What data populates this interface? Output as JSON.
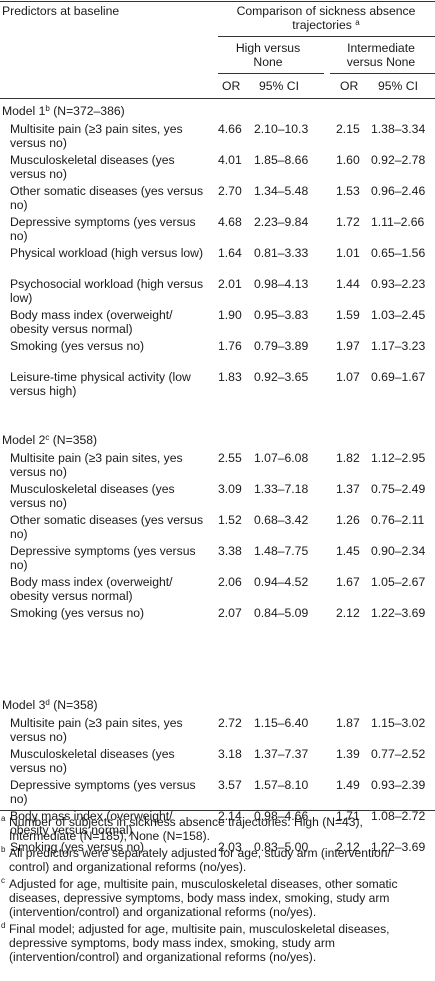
{
  "header": {
    "predictors": "Predictors at baseline",
    "comparison": "Comparison of sickness absence trajectories",
    "comparison_mark": "a",
    "group1": "High versus None",
    "group2": "Intermediate versus None",
    "or": "OR",
    "ci": "95% CI"
  },
  "models": [
    {
      "title": "Model 1",
      "mark": "b",
      "n": "(N=372–386)",
      "rows": [
        {
          "label": "Multisite pain (≥3 pain sites, yes versus no)",
          "or1": "4.66",
          "ci1": "2.10–10.3",
          "or2": "2.15",
          "ci2": "1.38–3.34"
        },
        {
          "label": "Musculoskeletal diseases (yes versus no)",
          "or1": "4.01",
          "ci1": "1.85–8.66",
          "or2": "1.60",
          "ci2": "0.92–2.78"
        },
        {
          "label": "Other somatic diseases (yes versus no)",
          "or1": "2.70",
          "ci1": "1.34–5.48",
          "or2": "1.53",
          "ci2": "0.96–2.46"
        },
        {
          "label": "Depressive symptoms (yes versus no)",
          "or1": "4.68",
          "ci1": "2.23–9.84",
          "or2": "1.72",
          "ci2": "1.11–2.66"
        },
        {
          "label": "Physical workload (high versus low)",
          "or1": "1.64",
          "ci1": "0.81–3.33",
          "or2": "1.01",
          "ci2": "0.65–1.56"
        },
        {
          "label": "Psychosocial workload (high versus low)",
          "or1": "2.01",
          "ci1": "0.98–4.13",
          "or2": "1.44",
          "ci2": "0.93–2.23"
        },
        {
          "label": "Body mass index (overweight/ obesity versus normal)",
          "or1": "1.90",
          "ci1": "0.95–3.83",
          "or2": "1.59",
          "ci2": "1.03–2.45"
        },
        {
          "label": "Smoking (yes versus no)",
          "or1": "1.76",
          "ci1": "0.79–3.89",
          "or2": "1.97",
          "ci2": "1.17–3.23"
        },
        {
          "label": "Leisure-time physical activity (low versus high)",
          "or1": "1.83",
          "ci1": "0.92–3.65",
          "or2": "1.07",
          "ci2": "0.69–1.67"
        }
      ]
    },
    {
      "title": "Model 2",
      "mark": "c",
      "n": "(N=358)",
      "rows": [
        {
          "label": "Multisite pain (≥3 pain sites, yes versus no)",
          "or1": "2.55",
          "ci1": "1.07–6.08",
          "or2": "1.82",
          "ci2": "1.12–2.95"
        },
        {
          "label": "Musculoskeletal diseases (yes versus no)",
          "or1": "3.09",
          "ci1": "1.33–7.18",
          "or2": "1.37",
          "ci2": "0.75–2.49"
        },
        {
          "label": "Other somatic diseases (yes versus no)",
          "or1": "1.52",
          "ci1": "0.68–3.42",
          "or2": "1.26",
          "ci2": "0.76–2.11"
        },
        {
          "label": "Depressive symptoms (yes versus no)",
          "or1": "3.38",
          "ci1": "1.48–7.75",
          "or2": "1.45",
          "ci2": "0.90–2.34"
        },
        {
          "label": "Body mass index (overweight/ obesity versus normal)",
          "or1": "2.06",
          "ci1": "0.94–4.52",
          "or2": "1.67",
          "ci2": "1.05–2.67"
        },
        {
          "label": "Smoking (yes versus no)",
          "or1": "2.07",
          "ci1": "0.84–5.09",
          "or2": "2.12",
          "ci2": "1.22–3.69"
        }
      ]
    },
    {
      "title": "Model 3",
      "mark": "d",
      "n": "(N=358)",
      "rows": [
        {
          "label": "Multisite pain (≥3 pain sites, yes versus no)",
          "or1": "2.72",
          "ci1": "1.15–6.40",
          "or2": "1.87",
          "ci2": "1.15–3.02"
        },
        {
          "label": "Musculoskeletal diseases (yes versus no)",
          "or1": "3.18",
          "ci1": "1.37–7.37",
          "or2": "1.39",
          "ci2": "0.77–2.52"
        },
        {
          "label": "Depressive symptoms (yes versus no)",
          "or1": "3.57",
          "ci1": "1.57–8.10",
          "or2": "1.49",
          "ci2": "0.93–2.39"
        },
        {
          "label": "Body mass index (overweight/ obesity versus normal)",
          "or1": "2.14",
          "ci1": "0.98–4.66",
          "or2": "1.71",
          "ci2": "1.08–2.72"
        },
        {
          "label": "Smoking (yes versus no)",
          "or1": "2.03",
          "ci1": "0.83–5.00",
          "or2": "2.12",
          "ci2": "1.22–3.69"
        }
      ]
    }
  ],
  "footnotes": [
    {
      "mark": "a",
      "text": "Number of subjects in sickness absence trajectories: High (N=43), Intermediate (N=185), None (N=158)."
    },
    {
      "mark": "b",
      "text": "All predictors were separately adjusted for age, study arm (intervention/ control) and organizational reforms (no/yes)."
    },
    {
      "mark": "c",
      "text": "Adjusted for age, multisite pain, musculoskeletal diseases, other somatic diseases, depressive symptoms, body mass index, smoking, study arm (intervention/control) and organizational reforms (no/yes)."
    },
    {
      "mark": "d",
      "text": "Final model; adjusted for age, multisite pain, musculoskeletal diseases, depressive symptoms, body mass index, smoking, study arm (intervention/control) and organizational reforms (no/yes)."
    }
  ]
}
